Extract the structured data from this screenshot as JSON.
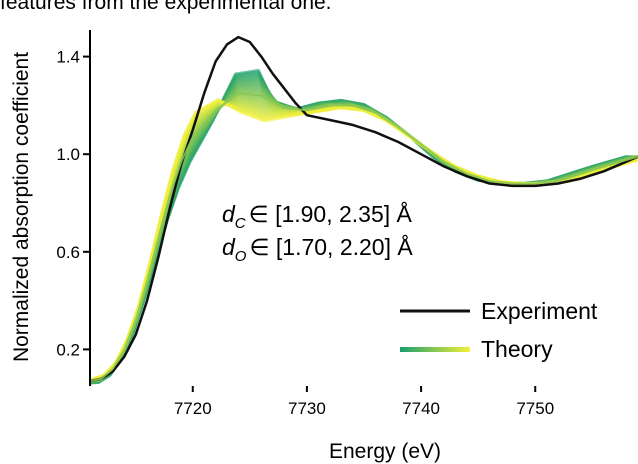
{
  "caption_fragment": "features from the experimental one.",
  "chart_data": {
    "type": "line",
    "xlabel": "Energy (eV)",
    "ylabel": "Normalized absorption coefficient",
    "xlim": [
      7711,
      7759
    ],
    "ylim": [
      0.05,
      1.55
    ],
    "xticks": [
      7720,
      7730,
      7740,
      7750
    ],
    "yticks": [
      0.2,
      0.6,
      1.0,
      1.4
    ],
    "ytick_labels": [
      "0.2",
      "0.6",
      "1.0",
      "1.4"
    ],
    "xtick_labels": [
      "7720",
      "7730",
      "7740",
      "7750"
    ],
    "annotations": [
      {
        "var": "d",
        "sub": "C",
        "text": "∈ [1.90, 2.35] Å"
      },
      {
        "var": "d",
        "sub": "O",
        "text": "∈ [1.70, 2.20] Å"
      }
    ],
    "legend": {
      "position": "bottom-right",
      "entries": [
        "Experiment",
        "Theory"
      ]
    },
    "colors": {
      "experiment": "#111111",
      "theory_start": "#1a9e6e",
      "theory_end": "#f3f03a"
    },
    "series": [
      {
        "name": "Experiment",
        "x": [
          7711,
          7712,
          7713,
          7714,
          7715,
          7716,
          7717,
          7718,
          7719,
          7720,
          7721,
          7722,
          7723,
          7724,
          7725,
          7726,
          7727,
          7728,
          7729,
          7730,
          7732,
          7734,
          7736,
          7738,
          7740,
          7742,
          7744,
          7746,
          7748,
          7750,
          7752,
          7754,
          7756,
          7759
        ],
        "y": [
          0.07,
          0.08,
          0.11,
          0.17,
          0.26,
          0.4,
          0.58,
          0.78,
          0.96,
          1.1,
          1.25,
          1.38,
          1.45,
          1.48,
          1.46,
          1.4,
          1.33,
          1.27,
          1.21,
          1.16,
          1.14,
          1.12,
          1.09,
          1.05,
          1.0,
          0.95,
          0.91,
          0.88,
          0.87,
          0.87,
          0.88,
          0.9,
          0.93,
          0.99
        ]
      },
      {
        "name": "Theory",
        "x": [
          7711,
          7712,
          7713,
          7714,
          7715,
          7716,
          7717,
          7718,
          7719,
          7720,
          7722,
          7724,
          7726,
          7728,
          7730,
          7732,
          7734,
          7736,
          7738,
          7740,
          7742,
          7744,
          7746,
          7748,
          7750,
          7752,
          7754,
          7756,
          7759
        ],
        "y": [
          0.07,
          0.08,
          0.12,
          0.2,
          0.32,
          0.48,
          0.66,
          0.83,
          0.97,
          1.07,
          1.18,
          1.25,
          1.24,
          1.19,
          1.18,
          1.2,
          1.2,
          1.17,
          1.11,
          1.04,
          0.97,
          0.92,
          0.89,
          0.88,
          0.88,
          0.89,
          0.92,
          0.95,
          0.99
        ]
      }
    ]
  }
}
